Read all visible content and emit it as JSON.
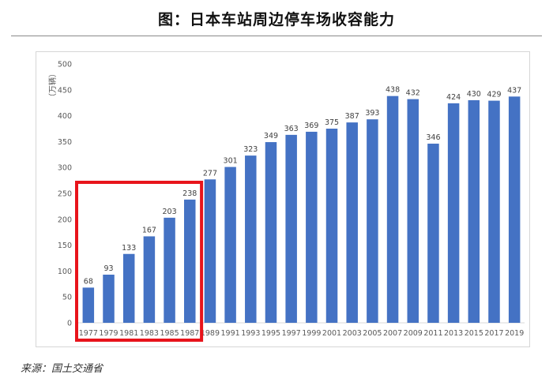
{
  "title": "图：日本车站周边停车场收容能力",
  "source": "来源：国土交通省",
  "chart_data": {
    "type": "bar",
    "title": "图：日本车站周边停车场收容能力",
    "xlabel": "",
    "ylabel": "（万辆）",
    "ylim": [
      0,
      500
    ],
    "yticks": [
      0,
      50,
      100,
      150,
      200,
      250,
      300,
      350,
      400,
      450,
      500
    ],
    "grid": false,
    "categories": [
      "1977",
      "1979",
      "1981",
      "1983",
      "1985",
      "1987",
      "1989",
      "1991",
      "1993",
      "1995",
      "1997",
      "1999",
      "2001",
      "2003",
      "2005",
      "2007",
      "2009",
      "2011",
      "2013",
      "2015",
      "2017",
      "2019"
    ],
    "values": [
      68,
      93,
      133,
      167,
      203,
      238,
      277,
      301,
      323,
      349,
      363,
      369,
      375,
      387,
      393,
      438,
      432,
      346,
      424,
      430,
      429,
      437
    ],
    "highlight": {
      "from_category": "1977",
      "to_category": "1987",
      "color": "#e8141b"
    },
    "bar_color": "#4472c4"
  }
}
